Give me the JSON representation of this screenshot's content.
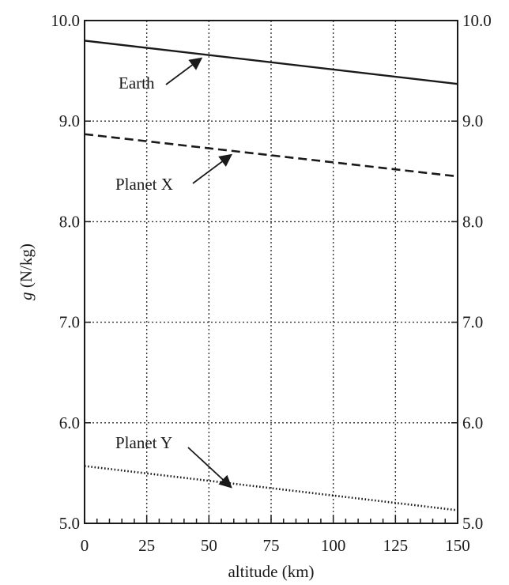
{
  "chart_data": {
    "type": "line",
    "xlabel": "altitude (km)",
    "ylabel_italic": "g",
    "ylabel_rest": " (N/kg)",
    "xlim": [
      0,
      150
    ],
    "ylim": [
      5.0,
      10.0
    ],
    "x_ticks": [
      0,
      25,
      50,
      75,
      100,
      125,
      150
    ],
    "x_tick_labels": [
      "0",
      "25",
      "50",
      "75",
      "100",
      "125",
      "150"
    ],
    "y_ticks": [
      5.0,
      6.0,
      7.0,
      8.0,
      9.0,
      10.0
    ],
    "y_tick_labels": [
      "5.0",
      "6.0",
      "7.0",
      "8.0",
      "9.0",
      "10.0"
    ],
    "grid": true,
    "right_axis_labels": true,
    "series": [
      {
        "name": "Earth",
        "style": "solid",
        "x": [
          0,
          150
        ],
        "y": [
          9.8,
          9.37
        ]
      },
      {
        "name": "Planet X",
        "style": "dashed",
        "x": [
          0,
          150
        ],
        "y": [
          8.87,
          8.45
        ]
      },
      {
        "name": "Planet Y",
        "style": "dotted",
        "x": [
          0,
          150
        ],
        "y": [
          5.57,
          5.13
        ]
      }
    ],
    "annotations": [
      {
        "text": "Earth",
        "series": "Earth",
        "arrow_x": 47
      },
      {
        "text": "Planet X",
        "series": "Planet X",
        "arrow_x": 59
      },
      {
        "text": "Planet Y",
        "series": "Planet Y",
        "arrow_x": 59
      }
    ]
  }
}
